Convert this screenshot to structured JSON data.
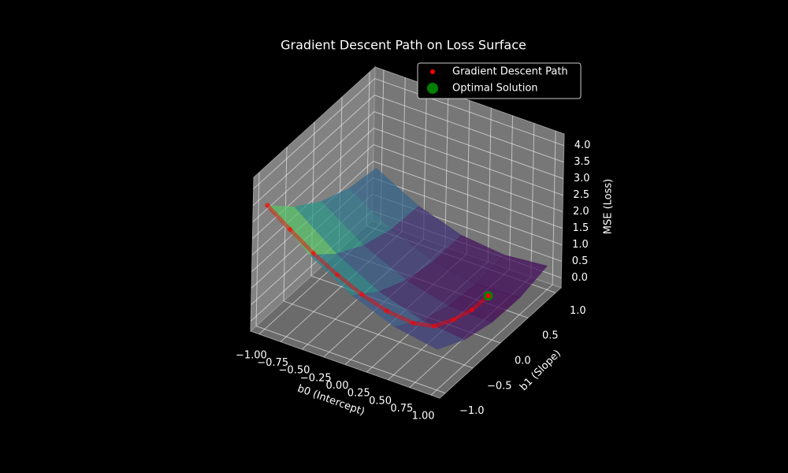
{
  "chart_data": {
    "type": "surface3d",
    "title": "Gradient Descent Path on Loss Surface",
    "xlabel": "b0 (Intercept)",
    "ylabel": "b1 (Slope)",
    "zlabel": "MSE (Loss)",
    "xlim": [
      -1.1,
      1.1
    ],
    "ylim": [
      -1.1,
      1.1
    ],
    "zlim": [
      -0.3,
      4.35
    ],
    "xticks": [
      {
        "value": -1,
        "label": "−1.00"
      },
      {
        "value": -0.75,
        "label": "−0.75"
      },
      {
        "value": -0.5,
        "label": "−0.50"
      },
      {
        "value": -0.25,
        "label": "−0.25"
      },
      {
        "value": 0,
        "label": "0.00"
      },
      {
        "value": 0.25,
        "label": "0.25"
      },
      {
        "value": 0.5,
        "label": "0.50"
      },
      {
        "value": 0.75,
        "label": "0.75"
      },
      {
        "value": 1,
        "label": "1.00"
      }
    ],
    "yticks": [
      {
        "value": -1,
        "label": "−1.0"
      },
      {
        "value": -0.5,
        "label": "−0.5"
      },
      {
        "value": 0,
        "label": "0.0"
      },
      {
        "value": 0.5,
        "label": "0.5"
      },
      {
        "value": 1,
        "label": "1.0"
      }
    ],
    "zticks": [
      {
        "value": 0,
        "label": "0.0"
      },
      {
        "value": 0.5,
        "label": "0.5"
      },
      {
        "value": 1,
        "label": "1.0"
      },
      {
        "value": 1.5,
        "label": "1.5"
      },
      {
        "value": 2,
        "label": "2.0"
      },
      {
        "value": 2.5,
        "label": "2.5"
      },
      {
        "value": 3,
        "label": "3.0"
      },
      {
        "value": 3.5,
        "label": "3.5"
      },
      {
        "value": 4,
        "label": "4.0"
      }
    ],
    "grid": true,
    "legend": "upper right",
    "surface": {
      "colormap": "viridis",
      "x": [
        -1,
        -0.5,
        0,
        0.5,
        1
      ],
      "y": [
        -1,
        -0.5,
        0,
        0.5,
        1
      ],
      "z": [
        [
          3.45,
          2.64,
          2.05,
          1.68,
          1.54
        ],
        [
          2.41,
          1.68,
          1.18,
          0.9,
          0.85
        ],
        [
          1.64,
          1.0,
          0.59,
          0.4,
          0.43
        ],
        [
          1.15,
          0.6,
          0.27,
          0.17,
          0.29
        ],
        [
          0.93,
          0.47,
          0.23,
          0.21,
          0.42
        ]
      ]
    },
    "series": [
      {
        "name": "Gradient Descent Path",
        "color": "#ff0000",
        "x": [
          -1,
          -0.75,
          -0.5,
          -0.25,
          0,
          0.25,
          0.5,
          0.65,
          0.68,
          0.7,
          0.7
        ],
        "y": [
          -1,
          -0.97,
          -0.93,
          -0.88,
          -0.82,
          -0.75,
          -0.66,
          -0.5,
          -0.2,
          0.1,
          0.4
        ],
        "z": [
          3.45,
          2.9,
          2.35,
          1.85,
          1.4,
          1.02,
          0.75,
          0.55,
          0.32,
          0.18,
          0.15
        ]
      },
      {
        "name": "Optimal Solution",
        "color": "#008000",
        "x": [
          0.7
        ],
        "y": [
          0.4
        ],
        "z": [
          0.15
        ]
      }
    ]
  }
}
